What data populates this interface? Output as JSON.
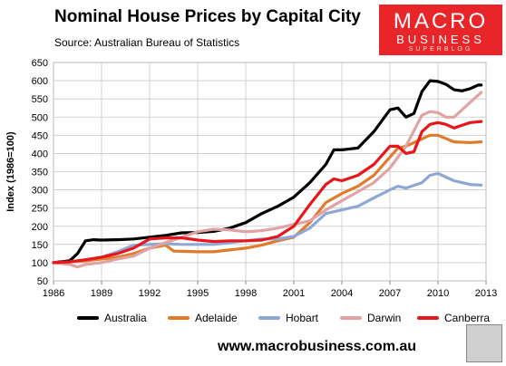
{
  "title": "Nominal House Prices by Capital City",
  "subtitle": "Source: Australian Bureau of Statistics",
  "logo": {
    "line1": "MACRO",
    "line2": "BUSINESS",
    "line3": "SUPERBLOG"
  },
  "website": "www.macrobusiness.com.au",
  "chart_data": {
    "type": "line",
    "ylabel": "Index (1986=100)",
    "xlabel": "",
    "xlim": [
      1986,
      2013
    ],
    "ylim": [
      50,
      650
    ],
    "x_ticks": [
      "1986",
      "1989",
      "1992",
      "1995",
      "1998",
      "2001",
      "2004",
      "2007",
      "2010",
      "2013"
    ],
    "y_ticks": [
      "50",
      "100",
      "150",
      "200",
      "250",
      "300",
      "350",
      "400",
      "450",
      "500",
      "550",
      "600",
      "650"
    ],
    "grid": true,
    "legend_position": "bottom",
    "series": [
      {
        "name": "Australia",
        "color": "#000000",
        "x": [
          1986,
          1987,
          1987.5,
          1988,
          1988.5,
          1989,
          1990,
          1991,
          1992,
          1993,
          1994,
          1995,
          1996,
          1997,
          1998,
          1999,
          2000,
          2001,
          2002,
          2003,
          2003.5,
          2004,
          2005,
          2006,
          2007,
          2007.5,
          2008,
          2008.5,
          2009,
          2009.5,
          2010,
          2010.5,
          2011,
          2011.5,
          2012,
          2012.5,
          2012.7
        ],
        "y": [
          100,
          105,
          125,
          160,
          163,
          162,
          163,
          165,
          170,
          175,
          182,
          183,
          186,
          195,
          210,
          235,
          255,
          280,
          320,
          370,
          410,
          410,
          415,
          460,
          520,
          525,
          500,
          510,
          570,
          600,
          598,
          590,
          575,
          572,
          578,
          588,
          588
        ]
      },
      {
        "name": "Adelaide",
        "color": "#e07b2a",
        "x": [
          1986,
          1987,
          1988,
          1989,
          1990,
          1991,
          1992,
          1993,
          1993.5,
          1995,
          1996,
          1997,
          1998,
          1999,
          2000,
          2001,
          2002,
          2003,
          2004,
          2005,
          2006,
          2007,
          2007.5,
          2008,
          2009,
          2009.5,
          2010,
          2011,
          2012,
          2012.7
        ],
        "y": [
          100,
          102,
          105,
          110,
          115,
          125,
          140,
          148,
          132,
          130,
          130,
          135,
          140,
          148,
          160,
          170,
          210,
          265,
          290,
          310,
          340,
          390,
          415,
          420,
          440,
          450,
          450,
          432,
          430,
          432
        ]
      },
      {
        "name": "Hobart",
        "color": "#8ea8d6",
        "x": [
          1986,
          1987,
          1988,
          1989,
          1990,
          1991,
          1992,
          1993,
          1994,
          1995,
          1996,
          1997,
          1998,
          1999,
          2000,
          2001,
          2002,
          2003,
          2004,
          2005,
          2006,
          2007,
          2007.5,
          2008,
          2009,
          2009.5,
          2010,
          2010.5,
          2011,
          2012,
          2012.7
        ],
        "y": [
          100,
          102,
          108,
          115,
          130,
          148,
          150,
          152,
          150,
          150,
          150,
          155,
          160,
          165,
          165,
          172,
          195,
          235,
          245,
          255,
          278,
          300,
          310,
          305,
          320,
          340,
          345,
          335,
          325,
          315,
          313
        ]
      },
      {
        "name": "Darwin",
        "color": "#e0a3a3",
        "x": [
          1986,
          1987,
          1987.5,
          1988,
          1989,
          1990,
          1991,
          1992,
          1993,
          1994,
          1995,
          1996,
          1997,
          1998,
          1999,
          2000,
          2001,
          2002,
          2003,
          2004,
          2005,
          2006,
          2007,
          2008,
          2009,
          2009.5,
          2010,
          2010.5,
          2011,
          2012,
          2012.7
        ],
        "y": [
          100,
          95,
          88,
          95,
          100,
          110,
          118,
          140,
          155,
          170,
          185,
          192,
          190,
          185,
          188,
          195,
          205,
          215,
          245,
          270,
          295,
          320,
          360,
          420,
          505,
          515,
          512,
          500,
          500,
          540,
          568
        ]
      },
      {
        "name": "Canberra",
        "color": "#e8161b",
        "x": [
          1986,
          1987,
          1988,
          1989,
          1990,
          1991,
          1992,
          1993,
          1994,
          1995,
          1996,
          1997,
          1998,
          1999,
          2000,
          2001,
          2002,
          2003,
          2003.5,
          2004,
          2005,
          2006,
          2007,
          2007.5,
          2008,
          2008.5,
          2009,
          2009.5,
          2010,
          2010.5,
          2011,
          2012,
          2012.7
        ],
        "y": [
          100,
          102,
          108,
          115,
          125,
          140,
          165,
          168,
          168,
          162,
          158,
          160,
          160,
          162,
          172,
          200,
          260,
          315,
          330,
          325,
          340,
          370,
          420,
          420,
          400,
          405,
          460,
          480,
          485,
          480,
          470,
          485,
          488
        ]
      }
    ]
  }
}
